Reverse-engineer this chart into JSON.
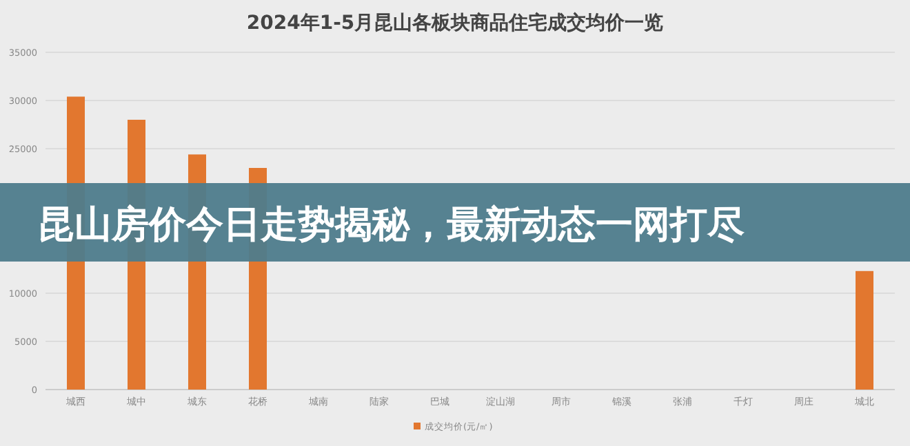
{
  "chart_data": {
    "type": "bar",
    "title": "2024年1-5月昆山各板块商品住宅成交均价一览",
    "categories": [
      "城西",
      "城中",
      "城东",
      "花桥",
      "城南",
      "陆家",
      "巴城",
      "淀山湖",
      "周市",
      "锦溪",
      "张浦",
      "千灯",
      "周庄",
      "城北"
    ],
    "series": [
      {
        "name": "成交均价(元/㎡)",
        "color": "#e2772f",
        "values": [
          30400,
          28000,
          24400,
          23000,
          null,
          null,
          null,
          null,
          null,
          null,
          null,
          null,
          null,
          12300
        ]
      }
    ],
    "ylim": [
      0,
      35000
    ],
    "yticks": [
      0,
      5000,
      10000,
      25000,
      30000,
      35000
    ],
    "grid": "y",
    "legend": "bottom",
    "annotations": [
      "昆山房价今日走势揭秘，最新动态一网打尽"
    ]
  }
}
